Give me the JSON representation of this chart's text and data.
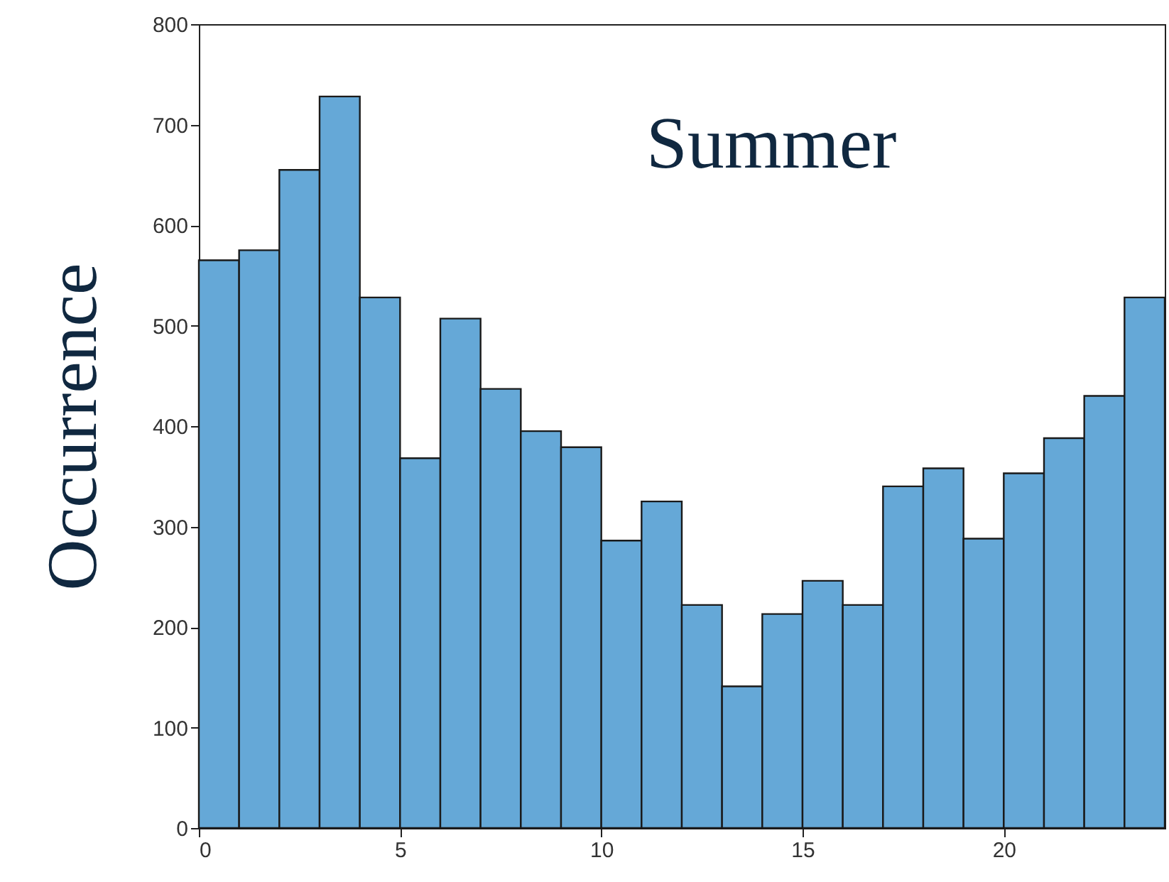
{
  "chart_data": {
    "type": "histogram",
    "ylabel": "Occurrence",
    "annotations": [
      "Summer"
    ],
    "bins": [
      0,
      1,
      2,
      3,
      4,
      5,
      6,
      7,
      8,
      9,
      10,
      11,
      12,
      13,
      14,
      15,
      16,
      17,
      18,
      19,
      20,
      21,
      22,
      23,
      24
    ],
    "values": [
      565,
      575,
      655,
      728,
      528,
      368,
      507,
      437,
      395,
      379,
      286,
      325,
      222,
      141,
      213,
      246,
      222,
      340,
      358,
      288,
      353,
      388,
      430,
      528
    ],
    "color": "#65a8d7",
    "xlim": [
      0,
      24
    ],
    "xticks": [
      0,
      5,
      10,
      15,
      20
    ],
    "ylim": [
      0,
      800
    ],
    "yticks": [
      0,
      100,
      200,
      300,
      400,
      500,
      600,
      700,
      800
    ],
    "grid": false
  }
}
